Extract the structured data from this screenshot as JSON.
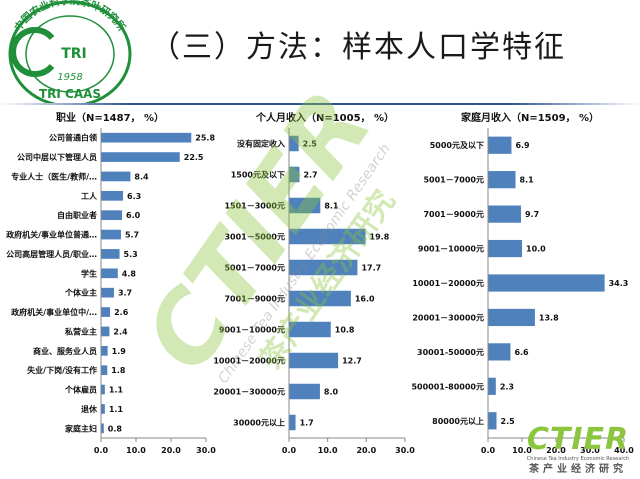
{
  "slide_title": "（三）方法：样本人口学特征",
  "logo": {
    "top_text": "中国农业科学院茶叶研究所",
    "year": "1958",
    "abbr": "TRI",
    "bottom_text": "TRI CAAS"
  },
  "watermark": {
    "big": "CTIER",
    "en": "Chinese Tea Industry Economic Research",
    "cn": "茶产业经济研究"
  },
  "corner_logo": {
    "big": "CTIER",
    "en": "Chinese Tea Industry Economic Research",
    "cn": "茶产业经济研究"
  },
  "colors": {
    "bar": "#4f81bd",
    "title_rule": "#2f5597",
    "logo_green": "#1f8f3a",
    "watermark_green": "#8cc63f"
  },
  "chart_data": [
    {
      "type": "bar",
      "orientation": "horizontal",
      "title": "职业（N=1487， %）",
      "categories": [
        "公司普通白领",
        "公司中层以下管理人员",
        "专业人士（医生/教师/…",
        "工人",
        "自由职业者",
        "政府机关/事业单位普通…",
        "公司高层管理人员/职业…",
        "学生",
        "个体业主",
        "政府机关/事业单位中/…",
        "私营业主",
        "商业、服务业人员",
        "失业/下岗/没有工作",
        "个体雇员",
        "退休",
        "家庭主妇"
      ],
      "values": [
        25.8,
        22.5,
        8.4,
        6.3,
        6.0,
        5.7,
        5.3,
        4.8,
        3.7,
        2.6,
        2.4,
        1.9,
        1.8,
        1.1,
        1.1,
        0.8
      ],
      "xlim": [
        0,
        30
      ],
      "ticks": [
        "0.0",
        "10.0",
        "20.0",
        "30.0"
      ]
    },
    {
      "type": "bar",
      "orientation": "horizontal",
      "title": "个人月收入（N=1005， %）",
      "categories": [
        "没有固定收入",
        "1500元及以下",
        "1501－3000元",
        "3001－5000元",
        "5001－7000元",
        "7001－9000元",
        "9001－10000元",
        "10001－20000元",
        "20001－30000元",
        "30000元以上"
      ],
      "values": [
        2.5,
        2.7,
        8.1,
        19.8,
        17.7,
        16.0,
        10.8,
        12.7,
        8.0,
        1.7
      ],
      "xlim": [
        0,
        30
      ],
      "ticks": [
        "0.0",
        "10.0",
        "20.0",
        "30.0"
      ]
    },
    {
      "type": "bar",
      "orientation": "horizontal",
      "title": "家庭月收入（N=1509， %）",
      "categories": [
        "5000元及以下",
        "5001－7000元",
        "7001－9000元",
        "9001－10000元",
        "10001－20000元",
        "20001－30000元",
        "30001-50000元",
        "500001-80000元",
        "80000元以上"
      ],
      "values": [
        6.9,
        8.1,
        9.7,
        10.0,
        34.3,
        13.8,
        6.6,
        2.3,
        2.5
      ],
      "xlim": [
        0,
        40
      ],
      "ticks": [
        "0.0",
        "10.0",
        "20.0",
        "30.0",
        "40.0"
      ]
    }
  ]
}
